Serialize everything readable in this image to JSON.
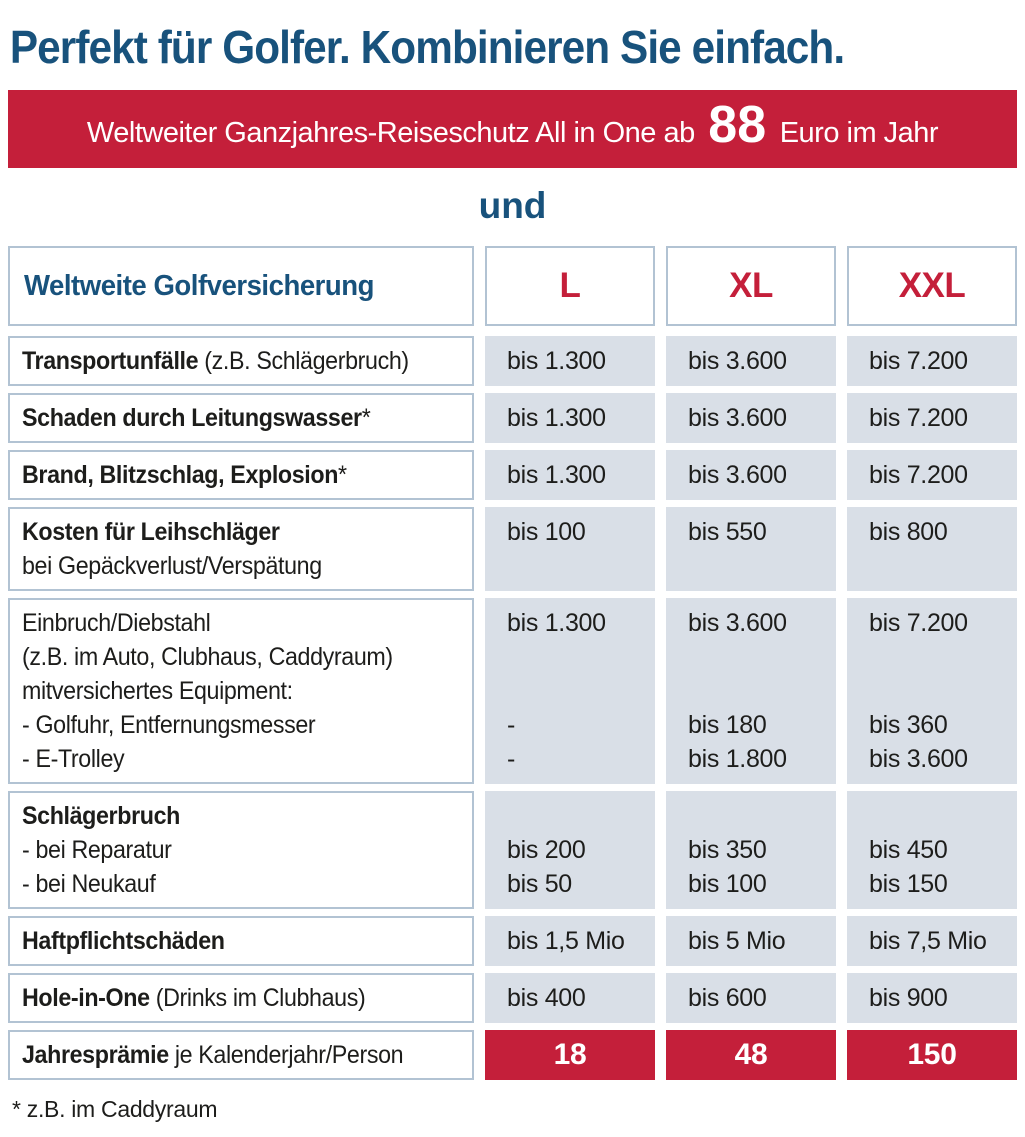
{
  "title": "Perfekt für Golfer. Kombinieren Sie einfach.",
  "banner": {
    "prefix": "Weltweiter Ganzjahres-Reiseschutz All in One ab",
    "big_number": "88",
    "suffix": "Euro im Jahr"
  },
  "connector": "und",
  "table": {
    "header": {
      "label": "Weltweite Golfversicherung",
      "plans": [
        "L",
        "XL",
        "XXL"
      ]
    },
    "rows": [
      {
        "label": [
          [
            {
              "text": "Transportunfälle",
              "bold": true
            },
            {
              "text": " (z.B. Schlägerbruch)",
              "bold": false
            }
          ]
        ],
        "values": [
          [
            "bis 1.300"
          ],
          [
            "bis 3.600"
          ],
          [
            "bis 7.200"
          ]
        ]
      },
      {
        "label": [
          [
            {
              "text": "Schaden durch Leitungswasser",
              "bold": true
            },
            {
              "text": "*",
              "bold": false
            }
          ]
        ],
        "values": [
          [
            "bis 1.300"
          ],
          [
            "bis 3.600"
          ],
          [
            "bis 7.200"
          ]
        ]
      },
      {
        "label": [
          [
            {
              "text": "Brand, Blitzschlag, Explosion",
              "bold": true
            },
            {
              "text": "*",
              "bold": false
            }
          ]
        ],
        "values": [
          [
            "bis 1.300"
          ],
          [
            "bis 3.600"
          ],
          [
            "bis 7.200"
          ]
        ]
      },
      {
        "label": [
          [
            {
              "text": "Kosten für Leihschläger",
              "bold": true
            }
          ],
          [
            {
              "text": "bei Gepäckverlust/Verspätung",
              "bold": false
            }
          ]
        ],
        "values": [
          [
            "bis 100",
            ""
          ],
          [
            "bis 550",
            ""
          ],
          [
            "bis 800",
            ""
          ]
        ]
      },
      {
        "label": [
          [
            {
              "text": "Einbruch/Diebstahl",
              "bold": false
            }
          ],
          [
            {
              "text": "(z.B. im Auto, Clubhaus, Caddyraum)",
              "bold": false
            }
          ],
          [
            {
              "text": "mitversichertes Equipment:",
              "bold": false
            }
          ],
          [
            {
              "text": "- Golfuhr, Entfernungsmesser",
              "bold": false
            }
          ],
          [
            {
              "text": "- E-Trolley",
              "bold": false
            }
          ]
        ],
        "values": [
          [
            "bis 1.300",
            "",
            "",
            "-",
            "-"
          ],
          [
            "bis 3.600",
            "",
            "",
            "bis 180",
            "bis 1.800"
          ],
          [
            "bis 7.200",
            "",
            "",
            "bis 360",
            "bis 3.600"
          ]
        ]
      },
      {
        "label": [
          [
            {
              "text": "Schlägerbruch",
              "bold": true
            }
          ],
          [
            {
              "text": "- bei Reparatur",
              "bold": false
            }
          ],
          [
            {
              "text": "- bei Neukauf",
              "bold": false
            }
          ]
        ],
        "values": [
          [
            "",
            "bis 200",
            "bis 50"
          ],
          [
            "",
            "bis 350",
            "bis 100"
          ],
          [
            "",
            "bis 450",
            "bis 150"
          ]
        ]
      },
      {
        "label": [
          [
            {
              "text": "Haftpflichtschäden",
              "bold": true
            }
          ]
        ],
        "values": [
          [
            "bis 1,5 Mio"
          ],
          [
            "bis 5 Mio"
          ],
          [
            "bis 7,5 Mio"
          ]
        ]
      },
      {
        "label": [
          [
            {
              "text": "Hole-in-One",
              "bold": true
            },
            {
              "text": " (Drinks im Clubhaus)",
              "bold": false
            }
          ]
        ],
        "values": [
          [
            "bis 400"
          ],
          [
            "bis 600"
          ],
          [
            "bis 900"
          ]
        ]
      },
      {
        "premium": true,
        "label": [
          [
            {
              "text": "Jahresprämie",
              "bold": true
            },
            {
              "text": " je Kalenderjahr/Person",
              "bold": false
            }
          ]
        ],
        "values": [
          [
            "18"
          ],
          [
            "48"
          ],
          [
            "150"
          ]
        ]
      }
    ]
  },
  "footnote": "* z.B. im Caddyraum",
  "colors": {
    "accent_blue": "#18527c",
    "accent_red": "#c41f3a",
    "value_cell_bg": "#d9dfe7",
    "cell_border": "#b2c3d3",
    "text": "#1d1d1b"
  }
}
